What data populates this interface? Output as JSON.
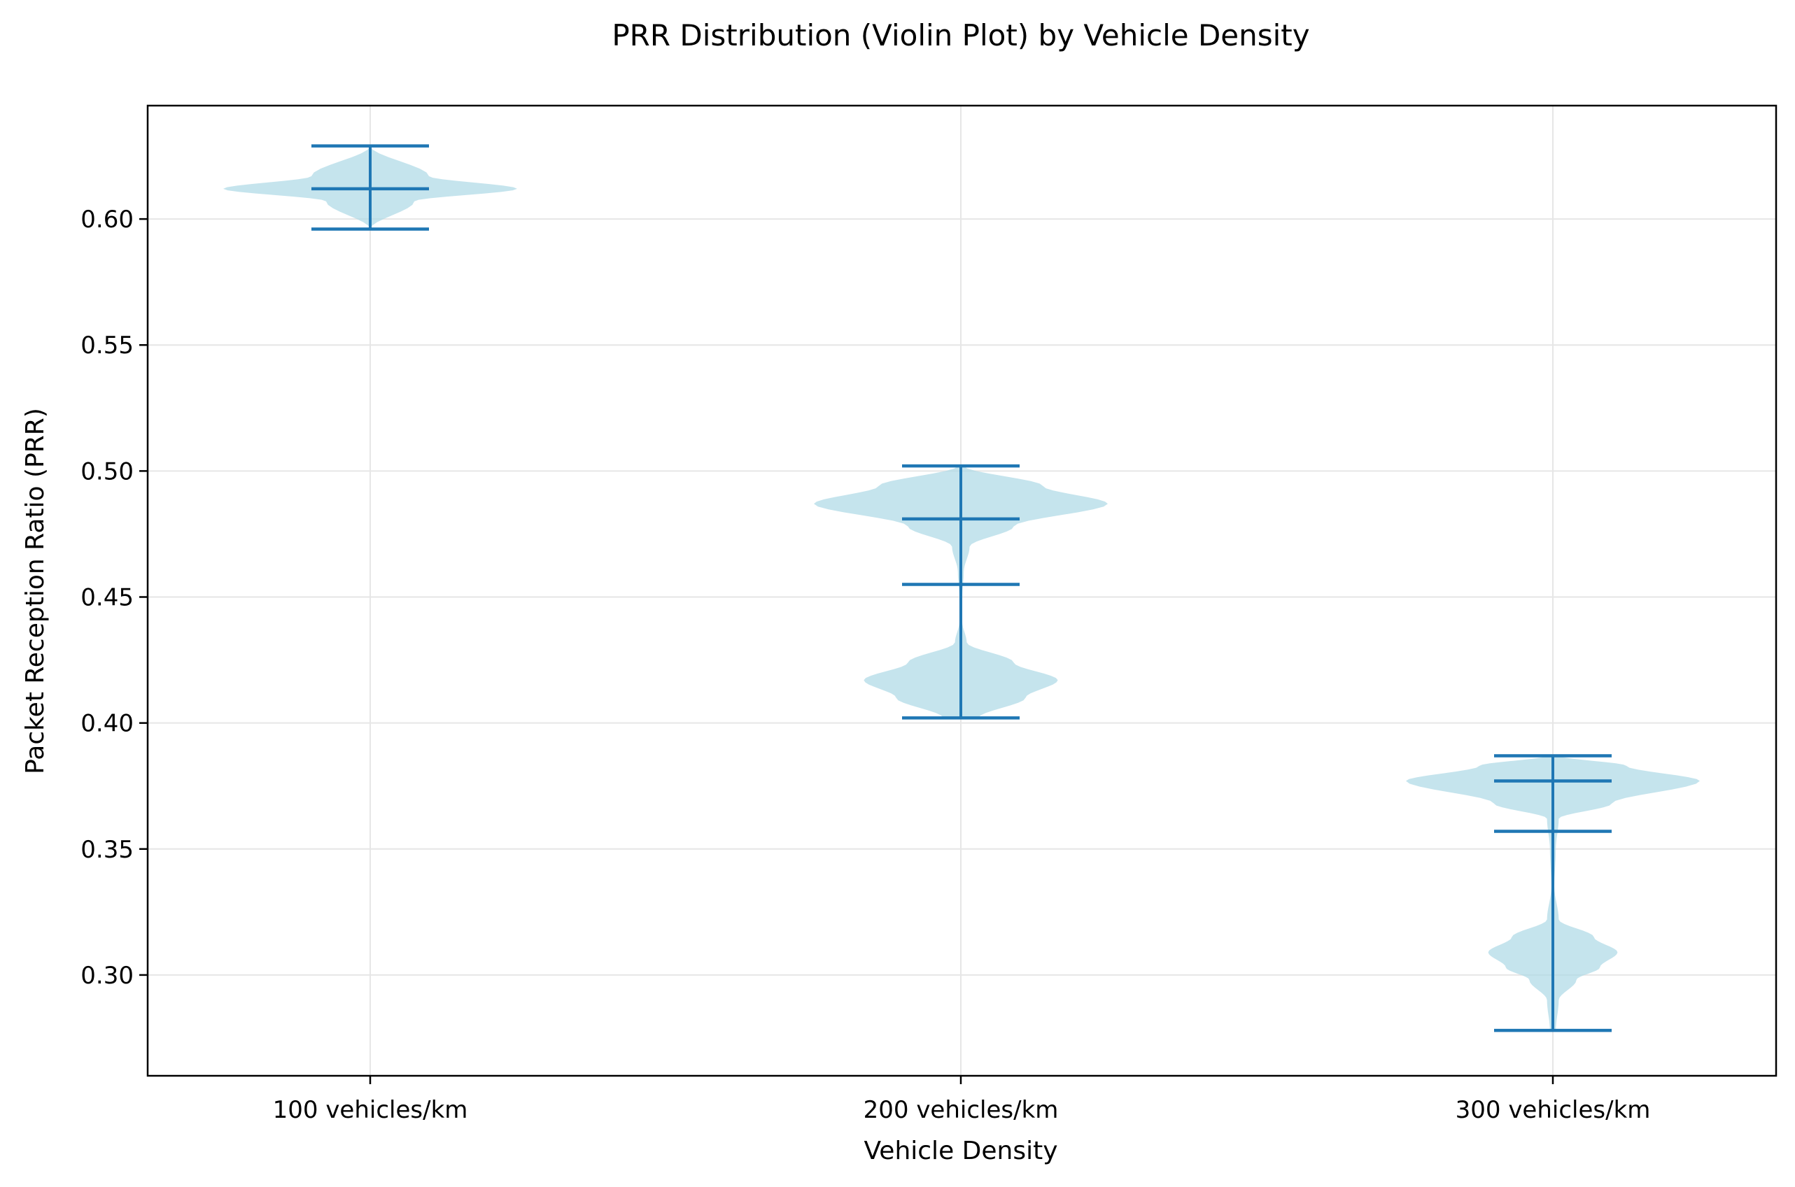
{
  "chart_data": {
    "type": "violin",
    "title": "PRR Distribution (Violin Plot) by Vehicle Density",
    "xlabel": "Vehicle Density",
    "ylabel": "Packet Reception Ratio (PRR)",
    "ylim": [
      0.26,
      0.645
    ],
    "yticks": [
      0.3,
      0.35,
      0.4,
      0.45,
      0.5,
      0.55,
      0.6
    ],
    "ytick_labels": [
      "0.30",
      "0.35",
      "0.40",
      "0.45",
      "0.50",
      "0.55",
      "0.60"
    ],
    "categories": [
      "100 vehicles/km",
      "200 vehicles/km",
      "300 vehicles/km"
    ],
    "grid": true,
    "colors": {
      "body": "#add8e6",
      "lines": "#1f77b4",
      "grid": "#e6e6e6"
    },
    "violins": [
      {
        "category": "100 vehicles/km",
        "min": 0.596,
        "max": 0.629,
        "mean": 0.612,
        "density": [
          [
            0.607,
            0.15
          ],
          [
            0.612,
            0.5
          ],
          [
            0.617,
            0.2
          ]
        ]
      },
      {
        "category": "200 vehicles/km",
        "min": 0.402,
        "max": 0.502,
        "mean": 0.455,
        "median": 0.481,
        "density": [
          [
            0.402,
            0.06
          ],
          [
            0.41,
            0.22
          ],
          [
            0.417,
            0.33
          ],
          [
            0.424,
            0.18
          ],
          [
            0.432,
            0.02
          ],
          [
            0.44,
            0.005
          ],
          [
            0.45,
            0.005
          ],
          [
            0.46,
            0.01
          ],
          [
            0.47,
            0.03
          ],
          [
            0.478,
            0.18
          ],
          [
            0.487,
            0.5
          ],
          [
            0.494,
            0.28
          ],
          [
            0.502,
            0.01
          ]
        ]
      },
      {
        "category": "300 vehicles/km",
        "min": 0.278,
        "max": 0.387,
        "mean": 0.357,
        "median": 0.377,
        "density": [
          [
            0.278,
            0.01
          ],
          [
            0.29,
            0.02
          ],
          [
            0.298,
            0.08
          ],
          [
            0.303,
            0.16
          ],
          [
            0.309,
            0.22
          ],
          [
            0.315,
            0.14
          ],
          [
            0.322,
            0.02
          ],
          [
            0.335,
            0.005
          ],
          [
            0.35,
            0.01
          ],
          [
            0.362,
            0.02
          ],
          [
            0.368,
            0.2
          ],
          [
            0.377,
            0.5
          ],
          [
            0.383,
            0.25
          ],
          [
            0.387,
            0.02
          ]
        ]
      }
    ]
  }
}
